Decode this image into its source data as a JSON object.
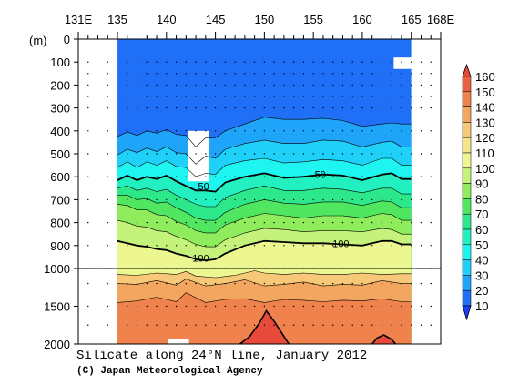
{
  "chart_data": {
    "type": "heatmap",
    "title": "Silicate along 24°N line, January 2012",
    "credit": "(C) Japan Meteorological Agency",
    "x_ticks": [
      "131E",
      "135",
      "140",
      "145",
      "150",
      "155",
      "160",
      "165",
      "168E"
    ],
    "x_tick_values": [
      131,
      135,
      140,
      145,
      150,
      155,
      160,
      165,
      168
    ],
    "xlim": [
      131,
      168
    ],
    "data_xrange": [
      135,
      165
    ],
    "ylabel": "(m)",
    "y_ticks": [
      "0",
      "100",
      "200",
      "300",
      "400",
      "500",
      "600",
      "700",
      "800",
      "900",
      "1000",
      "1500",
      "2000"
    ],
    "y_tick_values": [
      0,
      100,
      200,
      300,
      400,
      500,
      600,
      700,
      800,
      900,
      1000,
      1500,
      2000
    ],
    "ylim": [
      0,
      2000
    ],
    "y_break": 1000,
    "colorbar": {
      "levels": [
        10,
        20,
        30,
        40,
        50,
        60,
        70,
        80,
        90,
        100,
        110,
        120,
        130,
        140,
        150,
        160
      ],
      "labels": [
        "10",
        "20",
        "30",
        "40",
        "50",
        "60",
        "70",
        "80",
        "90",
        "100",
        "110",
        "120",
        "130",
        "140",
        "150",
        "160"
      ],
      "colors": [
        "#1a3df5",
        "#1f6ff7",
        "#1ea4f8",
        "#1fd0f9",
        "#1ff5f0",
        "#22f0c0",
        "#2ce88a",
        "#51e660",
        "#8fec5c",
        "#c5f27a",
        "#ecf791",
        "#f7e58a",
        "#f7c877",
        "#f3a65f",
        "#ef824d",
        "#eb6242",
        "#e84a3a"
      ]
    },
    "contour_labels": [
      {
        "text": "50",
        "lon": 143.8,
        "depth": 640
      },
      {
        "text": "50",
        "lon": 155.7,
        "depth": 590
      },
      {
        "text": "100",
        "lon": 143.5,
        "depth": 955
      },
      {
        "text": "100",
        "lon": 157.8,
        "depth": 890
      }
    ],
    "contour_lines": [
      {
        "level": 20,
        "points": [
          [
            135,
            425
          ],
          [
            136,
            405
          ],
          [
            137,
            420
          ],
          [
            138,
            400
          ],
          [
            139,
            410
          ],
          [
            140,
            395
          ],
          [
            141,
            415
          ],
          [
            142,
            420
          ],
          [
            143,
            470
          ],
          [
            144,
            430
          ],
          [
            145,
            430
          ],
          [
            146,
            400
          ],
          [
            148,
            370
          ],
          [
            150,
            340
          ],
          [
            152,
            350
          ],
          [
            154,
            350
          ],
          [
            156,
            345
          ],
          [
            158,
            355
          ],
          [
            160,
            380
          ],
          [
            162,
            370
          ],
          [
            163,
            365
          ],
          [
            164,
            370
          ],
          [
            165,
            370
          ]
        ]
      },
      {
        "level": 30,
        "points": [
          [
            135,
            505
          ],
          [
            136,
            480
          ],
          [
            137,
            495
          ],
          [
            138,
            475
          ],
          [
            139,
            490
          ],
          [
            140,
            470
          ],
          [
            141,
            495
          ],
          [
            142,
            500
          ],
          [
            143,
            545
          ],
          [
            144,
            510
          ],
          [
            145,
            520
          ],
          [
            146,
            480
          ],
          [
            148,
            455
          ],
          [
            150,
            440
          ],
          [
            152,
            455
          ],
          [
            154,
            455
          ],
          [
            156,
            440
          ],
          [
            158,
            445
          ],
          [
            160,
            470
          ],
          [
            162,
            450
          ],
          [
            163,
            445
          ],
          [
            164,
            470
          ],
          [
            165,
            470
          ]
        ]
      },
      {
        "level": 40,
        "points": [
          [
            135,
            560
          ],
          [
            136,
            535
          ],
          [
            137,
            560
          ],
          [
            138,
            535
          ],
          [
            139,
            550
          ],
          [
            140,
            530
          ],
          [
            141,
            555
          ],
          [
            142,
            560
          ],
          [
            143,
            600
          ],
          [
            144,
            585
          ],
          [
            145,
            590
          ],
          [
            146,
            550
          ],
          [
            148,
            530
          ],
          [
            150,
            520
          ],
          [
            152,
            540
          ],
          [
            154,
            535
          ],
          [
            156,
            525
          ],
          [
            158,
            530
          ],
          [
            160,
            550
          ],
          [
            162,
            520
          ],
          [
            163,
            520
          ],
          [
            164,
            550
          ],
          [
            165,
            550
          ]
        ]
      },
      {
        "level": 50,
        "points": [
          [
            135,
            615
          ],
          [
            136,
            595
          ],
          [
            137,
            615
          ],
          [
            138,
            600
          ],
          [
            139,
            610
          ],
          [
            140,
            595
          ],
          [
            141,
            620
          ],
          [
            142,
            640
          ],
          [
            143,
            660
          ],
          [
            144,
            660
          ],
          [
            145,
            665
          ],
          [
            146,
            625
          ],
          [
            148,
            600
          ],
          [
            150,
            585
          ],
          [
            152,
            605
          ],
          [
            154,
            600
          ],
          [
            156,
            590
          ],
          [
            158,
            595
          ],
          [
            160,
            615
          ],
          [
            162,
            590
          ],
          [
            163,
            585
          ],
          [
            164,
            610
          ],
          [
            165,
            610
          ]
        ]
      },
      {
        "level": 60,
        "points": [
          [
            135,
            650
          ],
          [
            136,
            640
          ],
          [
            137,
            660
          ],
          [
            138,
            650
          ],
          [
            139,
            665
          ],
          [
            140,
            655
          ],
          [
            141,
            680
          ],
          [
            142,
            700
          ],
          [
            143,
            720
          ],
          [
            144,
            730
          ],
          [
            145,
            730
          ],
          [
            146,
            690
          ],
          [
            148,
            660
          ],
          [
            150,
            640
          ],
          [
            152,
            660
          ],
          [
            154,
            660
          ],
          [
            156,
            650
          ],
          [
            158,
            655
          ],
          [
            160,
            670
          ],
          [
            162,
            650
          ],
          [
            163,
            650
          ],
          [
            164,
            675
          ],
          [
            165,
            675
          ]
        ]
      },
      {
        "level": 70,
        "points": [
          [
            135,
            680
          ],
          [
            136,
            680
          ],
          [
            137,
            700
          ],
          [
            138,
            695
          ],
          [
            139,
            715
          ],
          [
            140,
            710
          ],
          [
            141,
            735
          ],
          [
            142,
            755
          ],
          [
            143,
            780
          ],
          [
            144,
            790
          ],
          [
            145,
            790
          ],
          [
            146,
            755
          ],
          [
            148,
            720
          ],
          [
            150,
            700
          ],
          [
            152,
            715
          ],
          [
            154,
            720
          ],
          [
            156,
            710
          ],
          [
            158,
            710
          ],
          [
            160,
            725
          ],
          [
            162,
            705
          ],
          [
            163,
            710
          ],
          [
            164,
            735
          ],
          [
            165,
            735
          ]
        ]
      },
      {
        "level": 80,
        "points": [
          [
            135,
            720
          ],
          [
            136,
            725
          ],
          [
            137,
            745
          ],
          [
            138,
            745
          ],
          [
            139,
            765
          ],
          [
            140,
            770
          ],
          [
            141,
            795
          ],
          [
            142,
            810
          ],
          [
            143,
            835
          ],
          [
            144,
            845
          ],
          [
            145,
            845
          ],
          [
            146,
            810
          ],
          [
            148,
            780
          ],
          [
            150,
            760
          ],
          [
            152,
            770
          ],
          [
            154,
            780
          ],
          [
            156,
            770
          ],
          [
            158,
            770
          ],
          [
            160,
            780
          ],
          [
            162,
            760
          ],
          [
            163,
            765
          ],
          [
            164,
            790
          ],
          [
            165,
            790
          ]
        ]
      },
      {
        "level": 90,
        "points": [
          [
            135,
            790
          ],
          [
            136,
            800
          ],
          [
            137,
            815
          ],
          [
            138,
            820
          ],
          [
            139,
            835
          ],
          [
            140,
            840
          ],
          [
            141,
            860
          ],
          [
            142,
            875
          ],
          [
            143,
            895
          ],
          [
            144,
            905
          ],
          [
            145,
            905
          ],
          [
            146,
            875
          ],
          [
            148,
            845
          ],
          [
            150,
            825
          ],
          [
            152,
            830
          ],
          [
            154,
            840
          ],
          [
            156,
            835
          ],
          [
            158,
            835
          ],
          [
            160,
            840
          ],
          [
            162,
            825
          ],
          [
            163,
            830
          ],
          [
            164,
            850
          ],
          [
            165,
            850
          ]
        ]
      },
      {
        "level": 100,
        "points": [
          [
            135,
            880
          ],
          [
            136,
            890
          ],
          [
            137,
            900
          ],
          [
            138,
            905
          ],
          [
            139,
            915
          ],
          [
            140,
            920
          ],
          [
            141,
            935
          ],
          [
            142,
            945
          ],
          [
            143,
            960
          ],
          [
            144,
            965
          ],
          [
            145,
            960
          ],
          [
            146,
            935
          ],
          [
            148,
            900
          ],
          [
            150,
            880
          ],
          [
            152,
            885
          ],
          [
            154,
            890
          ],
          [
            156,
            890
          ],
          [
            158,
            895
          ],
          [
            160,
            900
          ],
          [
            162,
            880
          ],
          [
            163,
            880
          ],
          [
            164,
            895
          ],
          [
            165,
            895
          ]
        ]
      },
      {
        "level": 120,
        "points": [
          [
            135,
            1080
          ],
          [
            137,
            1090
          ],
          [
            139,
            1060
          ],
          [
            141,
            1080
          ],
          [
            142,
            1040
          ],
          [
            143,
            1100
          ],
          [
            145,
            1120
          ],
          [
            147,
            1090
          ],
          [
            149,
            1030
          ],
          [
            150,
            1060
          ],
          [
            152,
            1080
          ],
          [
            154,
            1060
          ],
          [
            156,
            1080
          ],
          [
            158,
            1080
          ],
          [
            160,
            1060
          ],
          [
            162,
            1080
          ],
          [
            164,
            1070
          ],
          [
            165,
            1070
          ]
        ]
      },
      {
        "level": 130,
        "points": [
          [
            135,
            1200
          ],
          [
            137,
            1210
          ],
          [
            139,
            1160
          ],
          [
            141,
            1220
          ],
          [
            142,
            1140
          ],
          [
            144,
            1230
          ],
          [
            146,
            1200
          ],
          [
            148,
            1150
          ],
          [
            150,
            1230
          ],
          [
            152,
            1210
          ],
          [
            154,
            1180
          ],
          [
            156,
            1230
          ],
          [
            158,
            1210
          ],
          [
            160,
            1220
          ],
          [
            162,
            1160
          ],
          [
            164,
            1200
          ],
          [
            165,
            1200
          ]
        ]
      },
      {
        "level": 140,
        "points": [
          [
            135,
            1450
          ],
          [
            137,
            1430
          ],
          [
            139,
            1380
          ],
          [
            141,
            1440
          ],
          [
            142,
            1320
          ],
          [
            144,
            1450
          ],
          [
            146,
            1410
          ],
          [
            148,
            1400
          ],
          [
            150,
            1450
          ],
          [
            152,
            1410
          ],
          [
            154,
            1420
          ],
          [
            156,
            1440
          ],
          [
            158,
            1420
          ],
          [
            160,
            1430
          ],
          [
            162,
            1400
          ],
          [
            164,
            1440
          ],
          [
            165,
            1440
          ]
        ]
      }
    ],
    "closed_contours": [
      {
        "level": 160,
        "points": [
          [
            147.5,
            2000
          ],
          [
            148.5,
            1900
          ],
          [
            149.5,
            1720
          ],
          [
            150.2,
            1560
          ],
          [
            151,
            1700
          ],
          [
            152,
            1900
          ],
          [
            152.5,
            2000
          ]
        ]
      },
      {
        "level": 160,
        "points": [
          [
            161,
            2000
          ],
          [
            161.5,
            1920
          ],
          [
            162.2,
            1880
          ],
          [
            163,
            1940
          ],
          [
            163.4,
            2000
          ]
        ]
      }
    ],
    "missing_regions": [
      {
        "lon0": 142.2,
        "lon1": 144.3,
        "d0": 400,
        "d1": 620
      },
      {
        "lon0": 163.2,
        "lon1": 165,
        "d0": 80,
        "d1": 130
      },
      {
        "lon0": 140.2,
        "lon1": 142.3,
        "d0": 1930,
        "d1": 2000
      }
    ]
  }
}
